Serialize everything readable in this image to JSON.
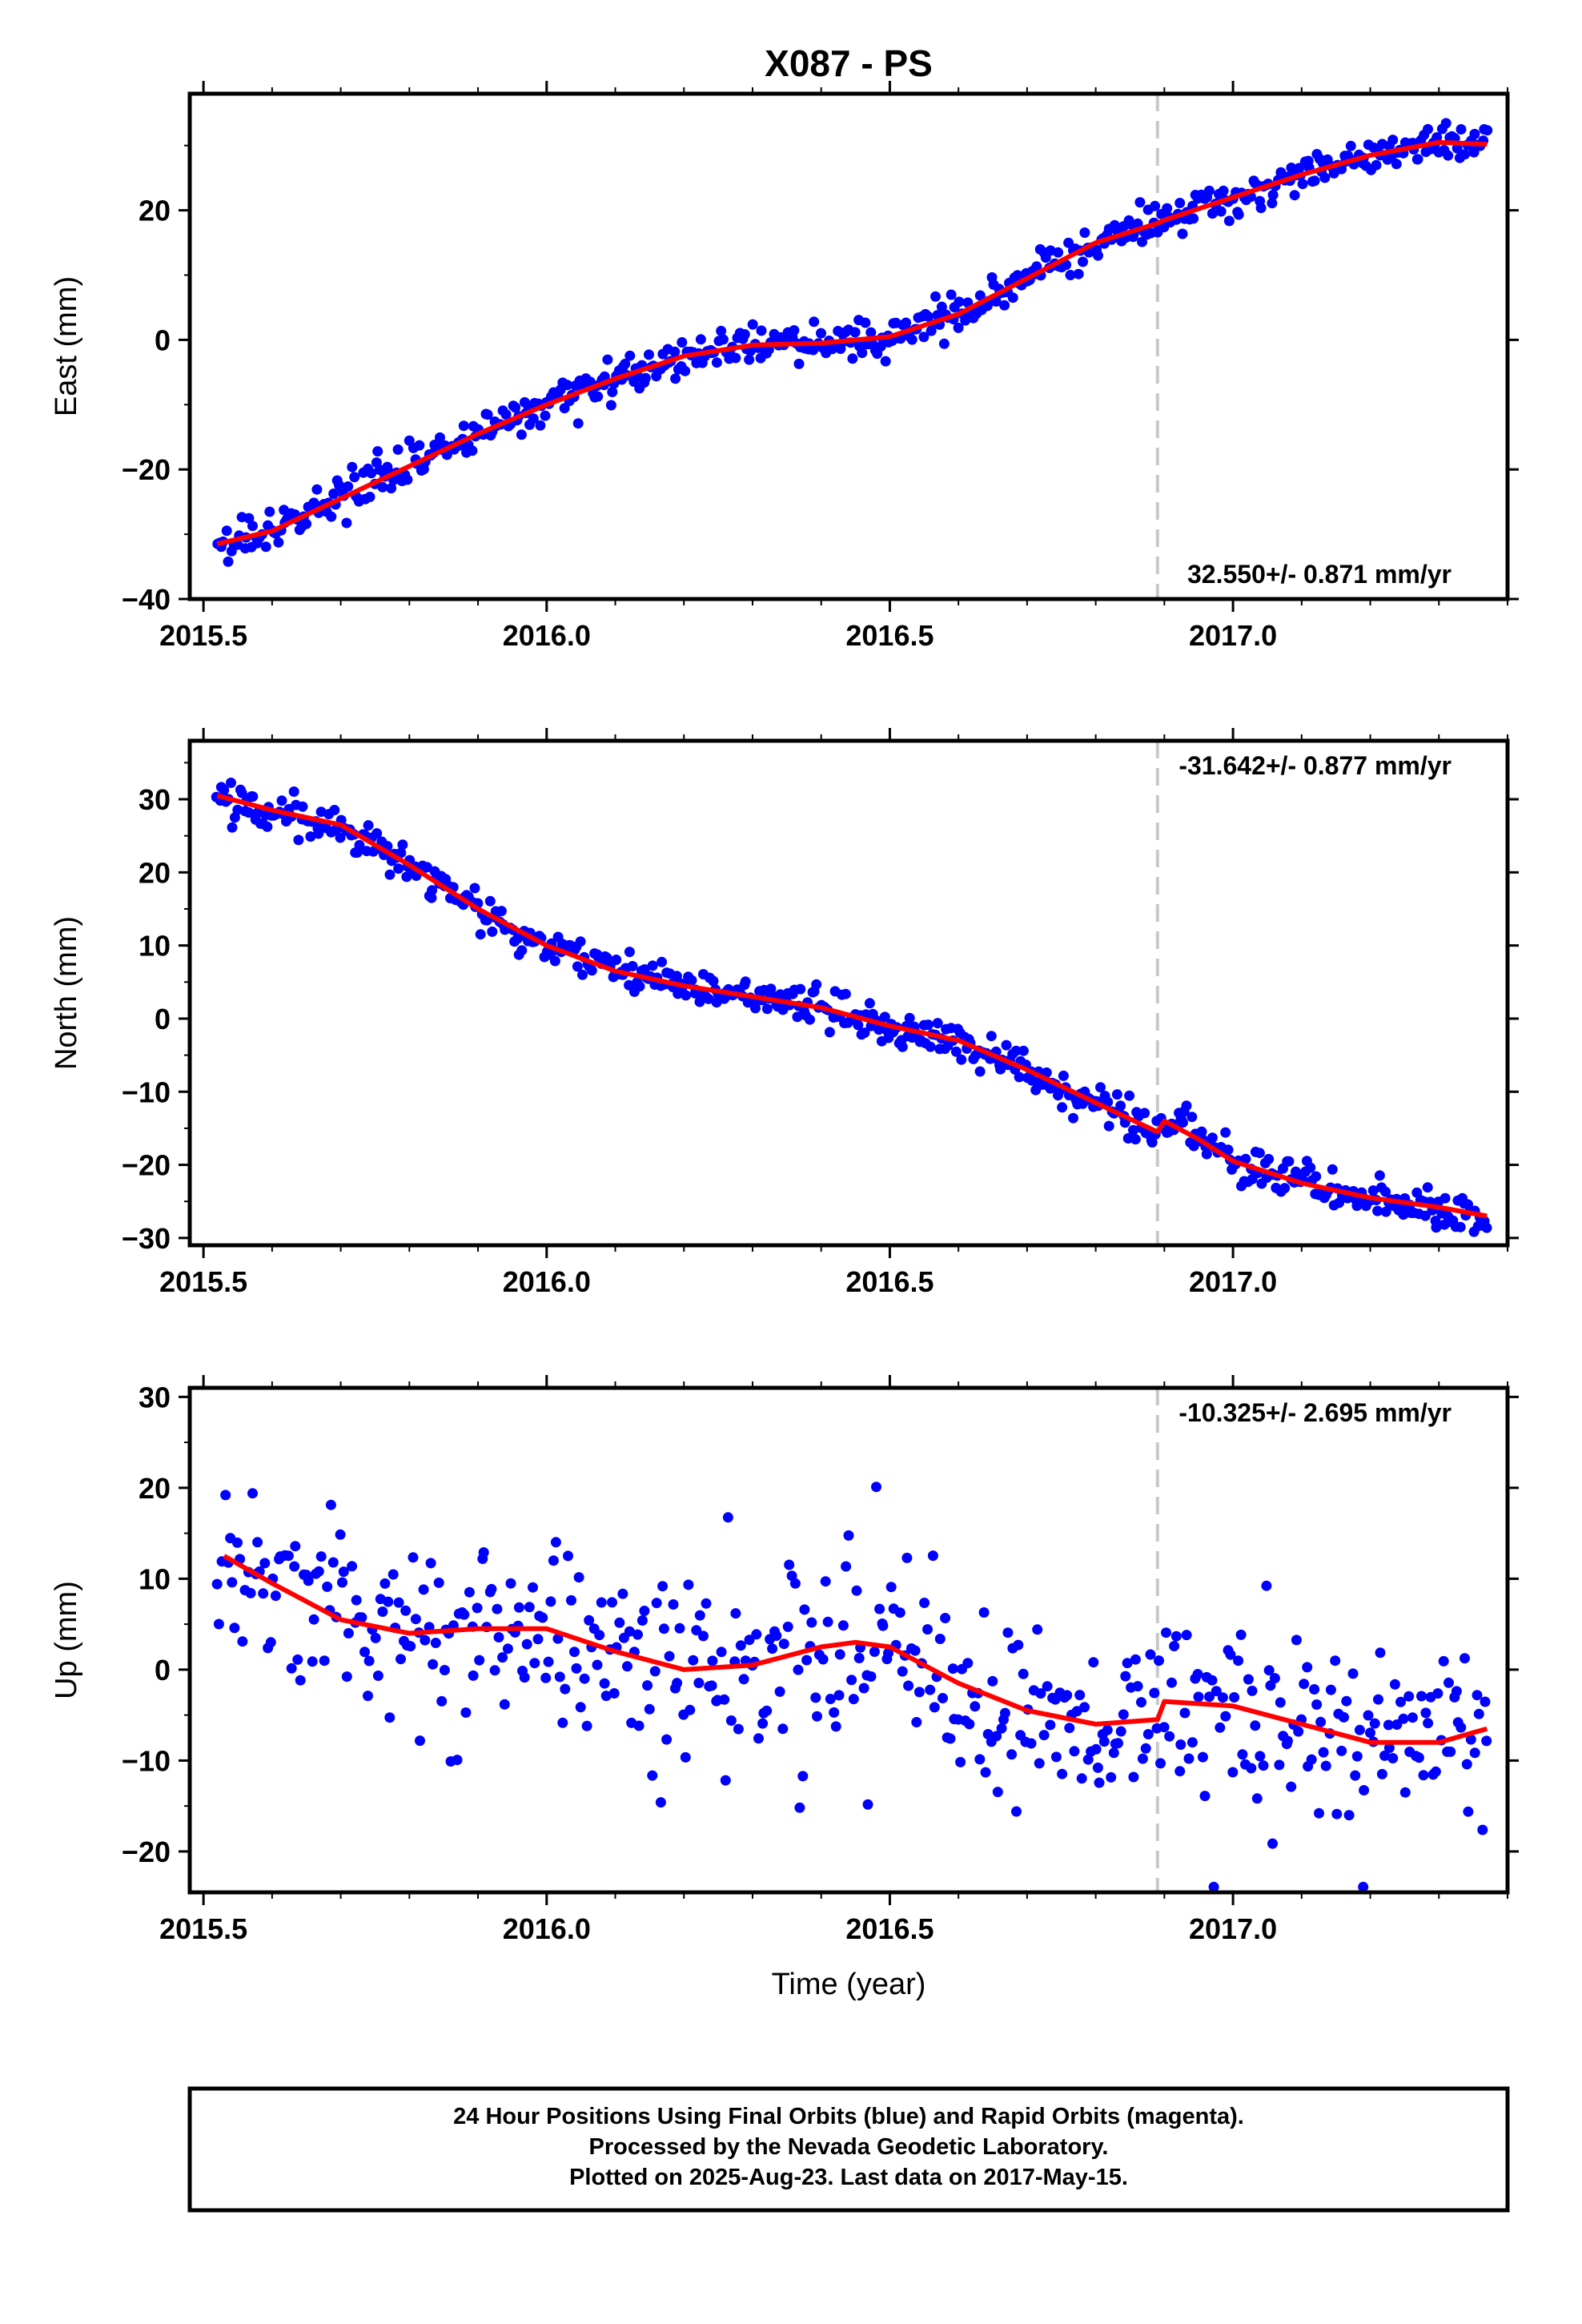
{
  "title": "X087 - PS",
  "xlabel": "Time (year)",
  "colors": {
    "points": "#0000ff",
    "fit": "#ff0000",
    "marker": "#c8c8c8",
    "frame": "#000000"
  },
  "footer": {
    "line1": "24 Hour Positions Using Final Orbits (blue) and Rapid Orbits (magenta).",
    "line2": "Processed by the Nevada Geodetic Laboratory.",
    "line3": "Plotted on 2025-Aug-23. Last data on 2017-May-15."
  },
  "chart_data": [
    {
      "type": "scatter",
      "ylabel": "East (mm)",
      "xlim": [
        2015.48,
        2017.4
      ],
      "ylim": [
        -40,
        38
      ],
      "xticks": [
        "2015.5",
        "2016.0",
        "2016.5",
        "2017.0"
      ],
      "yticks": [
        "20",
        "0",
        "−20",
        "−40"
      ],
      "ytick_values": [
        20,
        0,
        -20,
        -40
      ],
      "rate_label": "32.550+/- 0.871 mm/yr",
      "rate_position": "bottom-right",
      "equipment_change": 2016.89,
      "trend": [
        [
          2015.52,
          -31.5
        ],
        [
          2015.6,
          -29.5
        ],
        [
          2015.7,
          -24.5
        ],
        [
          2015.8,
          -19.5
        ],
        [
          2015.9,
          -14.5
        ],
        [
          2016.0,
          -10
        ],
        [
          2016.1,
          -6
        ],
        [
          2016.2,
          -2.5
        ],
        [
          2016.3,
          -0.8
        ],
        [
          2016.4,
          -0.5
        ],
        [
          2016.5,
          0.5
        ],
        [
          2016.6,
          4
        ],
        [
          2016.7,
          9.5
        ],
        [
          2016.8,
          15
        ],
        [
          2016.89,
          18
        ],
        [
          2016.9,
          18.5
        ],
        [
          2017.0,
          22
        ],
        [
          2017.1,
          25.5
        ],
        [
          2017.2,
          28.5
        ],
        [
          2017.3,
          30.5
        ],
        [
          2017.37,
          30.2
        ]
      ],
      "scatter_sd": 1.4,
      "n_points": 560
    },
    {
      "type": "scatter",
      "ylabel": "North (mm)",
      "xlim": [
        2015.48,
        2017.4
      ],
      "ylim": [
        -31,
        38
      ],
      "xticks": [
        "2015.5",
        "2016.0",
        "2016.5",
        "2017.0"
      ],
      "yticks": [
        "30",
        "20",
        "10",
        "0",
        "−10",
        "−20",
        "−30"
      ],
      "ytick_values": [
        30,
        20,
        10,
        0,
        -10,
        -20,
        -30
      ],
      "rate_label": "-31.642+/- 0.877 mm/yr",
      "rate_position": "top-right",
      "equipment_change": 2016.89,
      "trend": [
        [
          2015.52,
          30.5
        ],
        [
          2015.6,
          28.5
        ],
        [
          2015.7,
          26.5
        ],
        [
          2015.8,
          21
        ],
        [
          2015.9,
          15
        ],
        [
          2016.0,
          10
        ],
        [
          2016.1,
          6.5
        ],
        [
          2016.2,
          4.5
        ],
        [
          2016.3,
          3
        ],
        [
          2016.4,
          1.5
        ],
        [
          2016.5,
          -1
        ],
        [
          2016.6,
          -3
        ],
        [
          2016.7,
          -7
        ],
        [
          2016.8,
          -11.5
        ],
        [
          2016.89,
          -15.5
        ],
        [
          2016.9,
          -14
        ],
        [
          2016.95,
          -16.5
        ],
        [
          2017.0,
          -19.5
        ],
        [
          2017.1,
          -22.5
        ],
        [
          2017.2,
          -24.5
        ],
        [
          2017.3,
          -25.8
        ],
        [
          2017.37,
          -27
        ]
      ],
      "scatter_sd": 1.3,
      "n_points": 560
    },
    {
      "type": "scatter",
      "ylabel": "Up (mm)",
      "xlim": [
        2015.48,
        2017.4
      ],
      "ylim": [
        -24.5,
        31
      ],
      "xticks": [
        "2015.5",
        "2016.0",
        "2016.5",
        "2017.0"
      ],
      "yticks": [
        "30",
        "20",
        "10",
        "0",
        "−10",
        "−20"
      ],
      "ytick_values": [
        30,
        20,
        10,
        0,
        -10,
        -20
      ],
      "rate_label": "-10.325+/- 2.695 mm/yr",
      "rate_position": "top-right",
      "equipment_change": 2016.89,
      "trend": [
        [
          2015.53,
          12.5
        ],
        [
          2015.6,
          9.5
        ],
        [
          2015.7,
          5.5
        ],
        [
          2015.8,
          4
        ],
        [
          2015.9,
          4.5
        ],
        [
          2016.0,
          4.5
        ],
        [
          2016.1,
          2
        ],
        [
          2016.2,
          0
        ],
        [
          2016.3,
          0.5
        ],
        [
          2016.4,
          2.5
        ],
        [
          2016.45,
          3
        ],
        [
          2016.5,
          2.5
        ],
        [
          2016.6,
          -1.5
        ],
        [
          2016.7,
          -4.5
        ],
        [
          2016.8,
          -6
        ],
        [
          2016.89,
          -5.5
        ],
        [
          2016.9,
          -3.5
        ],
        [
          2017.0,
          -4
        ],
        [
          2017.1,
          -6
        ],
        [
          2017.2,
          -8
        ],
        [
          2017.3,
          -8
        ],
        [
          2017.37,
          -6.5
        ]
      ],
      "scatter_sd": 5.0,
      "n_points": 500
    }
  ]
}
